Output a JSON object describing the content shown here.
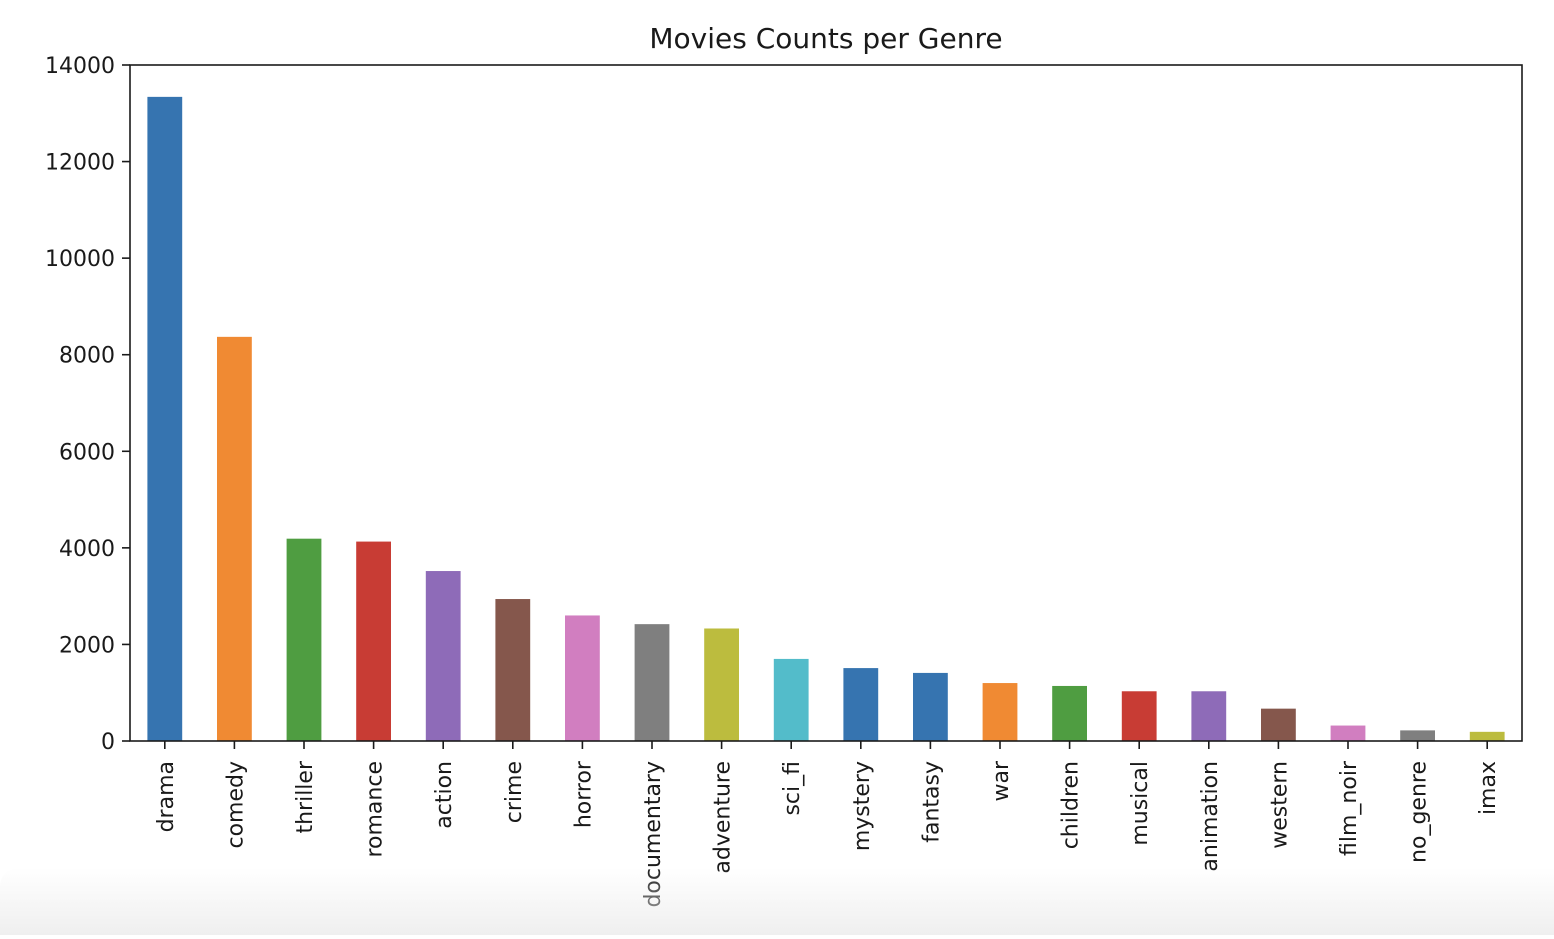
{
  "chart_data": {
    "type": "bar",
    "title": "Movies Counts per Genre",
    "xlabel": "",
    "ylabel": "",
    "ylim": [
      0,
      14000
    ],
    "yticks": [
      "0",
      "2000",
      "4000",
      "6000",
      "8000",
      "10000",
      "12000",
      "14000"
    ],
    "categories": [
      "drama",
      "comedy",
      "thriller",
      "romance",
      "action",
      "crime",
      "horror",
      "documentary",
      "adventure",
      "sci_fi",
      "mystery",
      "fantasy",
      "war",
      "children",
      "musical",
      "animation",
      "western",
      "film_noir",
      "no_genre",
      "imax"
    ],
    "values": [
      13340,
      8370,
      4190,
      4130,
      3520,
      2940,
      2600,
      2420,
      2330,
      1700,
      1510,
      1410,
      1200,
      1140,
      1030,
      1030,
      670,
      320,
      220,
      190
    ],
    "colors": [
      "#3674b0",
      "#f08a33",
      "#4f9d41",
      "#c83c34",
      "#8e6bb8",
      "#85574c",
      "#d17ec0",
      "#7f7f7f",
      "#bcbc3e",
      "#53bcca",
      "#3674b0",
      "#3674b0",
      "#f08a33",
      "#4f9d41",
      "#c83c34",
      "#8e6bb8",
      "#85574c",
      "#d17ec0",
      "#7f7f7f",
      "#bcbc3e"
    ],
    "grid": false,
    "legend": "none"
  }
}
